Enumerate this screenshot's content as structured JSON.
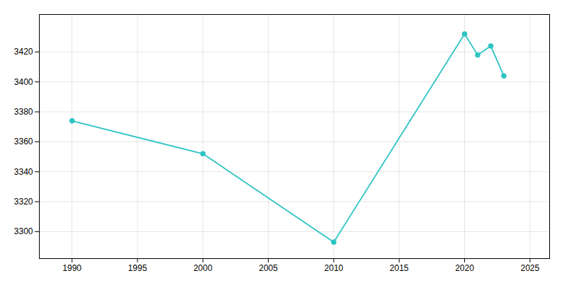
{
  "chart_data": {
    "type": "line",
    "x": [
      1990,
      2000,
      2010,
      2020,
      2021,
      2022,
      2023
    ],
    "values": [
      3374,
      3352,
      3293,
      3432,
      3418,
      3424,
      3404
    ],
    "color": "#2EC4C4",
    "marker": "circle",
    "xlim": [
      1987.5,
      2026.5
    ],
    "ylim": [
      3282,
      3445
    ],
    "xticks": [
      1990,
      1995,
      2000,
      2005,
      2010,
      2015,
      2020,
      2025
    ],
    "yticks": [
      3300,
      3320,
      3340,
      3360,
      3380,
      3400,
      3420
    ],
    "grid": true
  }
}
